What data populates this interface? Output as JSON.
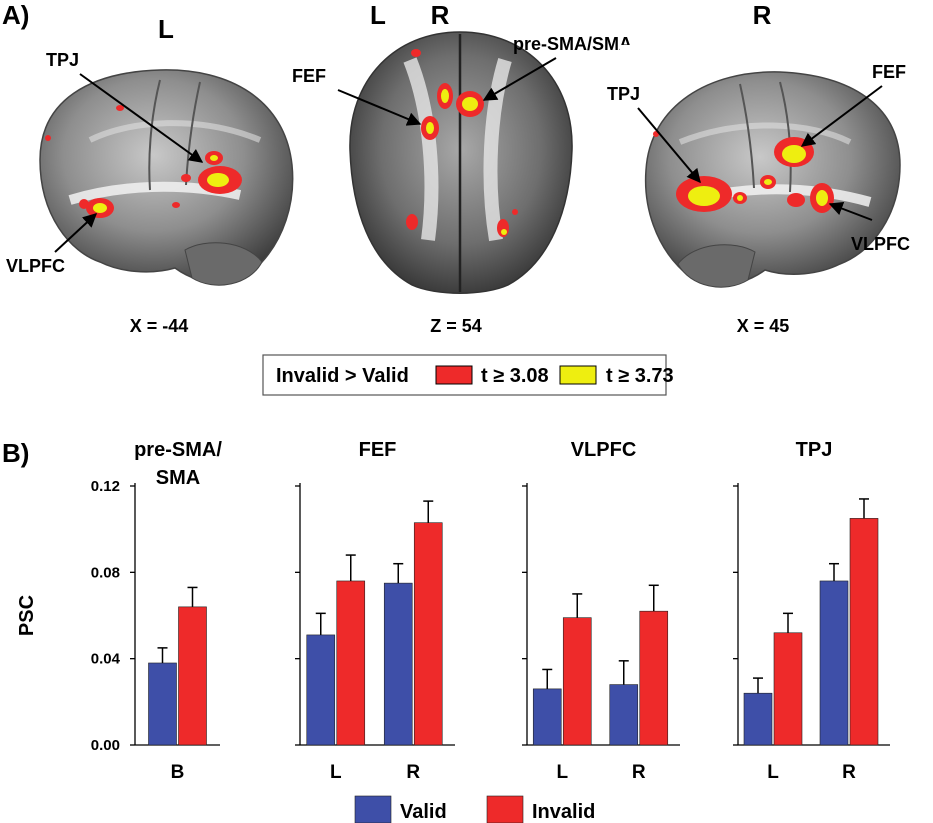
{
  "panel_a": {
    "label": "A)",
    "views": [
      {
        "hemi_labels": [
          "L"
        ],
        "coordinate": "X = -44",
        "regions": [
          "TPJ",
          "VLPFC"
        ]
      },
      {
        "hemi_labels": [
          "L",
          "R"
        ],
        "coordinate": "Z = 54",
        "regions": [
          "FEF",
          "pre-SMA/SMA"
        ]
      },
      {
        "hemi_labels": [
          "R"
        ],
        "coordinate": "X = 45",
        "regions": [
          "TPJ",
          "FEF",
          "VLPFC"
        ]
      }
    ],
    "legend": {
      "contrast": "Invalid > Valid",
      "thresholds": [
        {
          "label": "t ≥ 3.08",
          "color": "#ee2a2a"
        },
        {
          "label": "t ≥ 3.73",
          "color": "#eeee10"
        }
      ]
    }
  },
  "panel_b": {
    "label": "B)",
    "colors": {
      "valid": "#3e4fa8",
      "invalid": "#ee2a2a"
    }
  },
  "chart_data": {
    "type": "bar",
    "ylabel": "PSC",
    "ylim": [
      0,
      0.12
    ],
    "yticks": [
      "0.00",
      "0.04",
      "0.08",
      "0.12"
    ],
    "legend": [
      "Valid",
      "Invalid"
    ],
    "legend_placement": "bottom",
    "groups": [
      {
        "title_lines": [
          "pre-SMA/",
          "SMA"
        ],
        "categories": [
          "B"
        ],
        "series": [
          {
            "name": "Valid",
            "values": [
              0.038
            ],
            "errors": [
              0.007
            ]
          },
          {
            "name": "Invalid",
            "values": [
              0.064
            ],
            "errors": [
              0.009
            ]
          }
        ]
      },
      {
        "title_lines": [
          "FEF"
        ],
        "categories": [
          "L",
          "R"
        ],
        "series": [
          {
            "name": "Valid",
            "values": [
              0.051,
              0.075
            ],
            "errors": [
              0.01,
              0.009
            ]
          },
          {
            "name": "Invalid",
            "values": [
              0.076,
              0.103
            ],
            "errors": [
              0.012,
              0.01
            ]
          }
        ]
      },
      {
        "title_lines": [
          "VLPFC"
        ],
        "categories": [
          "L",
          "R"
        ],
        "series": [
          {
            "name": "Valid",
            "values": [
              0.026,
              0.028
            ],
            "errors": [
              0.009,
              0.011
            ]
          },
          {
            "name": "Invalid",
            "values": [
              0.059,
              0.062
            ],
            "errors": [
              0.011,
              0.012
            ]
          }
        ]
      },
      {
        "title_lines": [
          "TPJ"
        ],
        "categories": [
          "L",
          "R"
        ],
        "series": [
          {
            "name": "Valid",
            "values": [
              0.024,
              0.076
            ],
            "errors": [
              0.007,
              0.008
            ]
          },
          {
            "name": "Invalid",
            "values": [
              0.052,
              0.105
            ],
            "errors": [
              0.009,
              0.009
            ]
          }
        ]
      }
    ]
  }
}
